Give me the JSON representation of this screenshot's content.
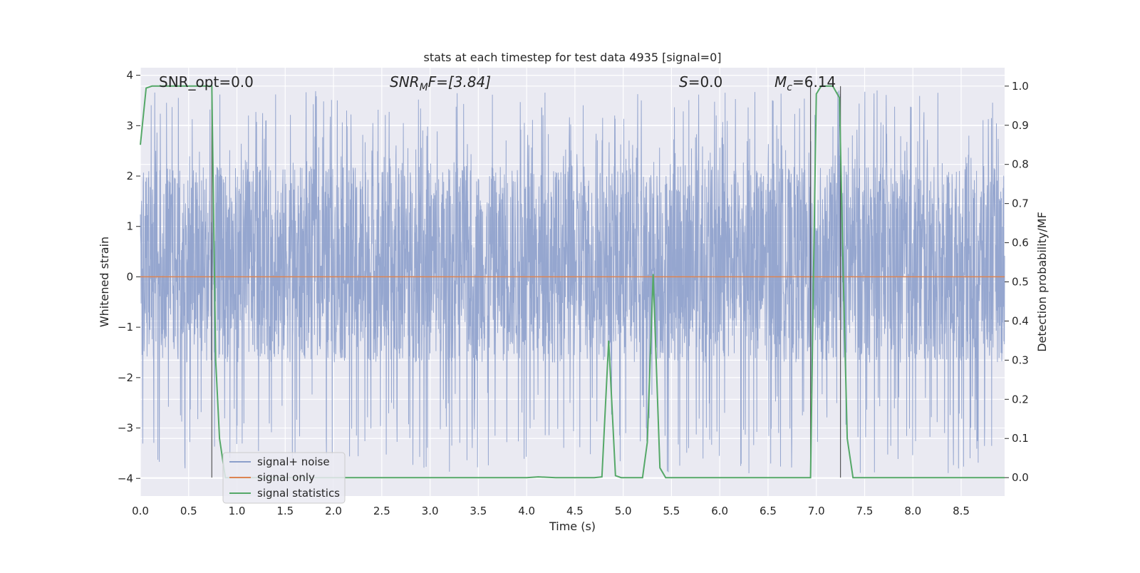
{
  "chart_data": {
    "type": "line",
    "title": "stats at each timestep for test data 4935 [signal=0]",
    "xlabel": "Time (s)",
    "ylabel": "Whitened strain",
    "ylabel_right": "Detection probability/MF",
    "xlim": [
      0.0,
      8.95
    ],
    "ylim": [
      -4.35,
      4.15
    ],
    "ylim_right": [
      -0.047,
      1.047
    ],
    "x_ticks": [
      "0.0",
      "0.5",
      "1.0",
      "1.5",
      "2.0",
      "2.5",
      "3.0",
      "3.5",
      "4.0",
      "4.5",
      "5.0",
      "5.5",
      "6.0",
      "6.5",
      "7.0",
      "7.5",
      "8.0",
      "8.5"
    ],
    "y_ticks": [
      "4",
      "3",
      "2",
      "1",
      "0",
      "−1",
      "−2",
      "−3",
      "−4"
    ],
    "y_right_ticks": [
      "1.0",
      "0.9",
      "0.8",
      "0.7",
      "0.6",
      "0.5",
      "0.4",
      "0.3",
      "0.2",
      "0.1",
      "0.0"
    ],
    "grid": true,
    "legend_position": "lower-left",
    "annotations": {
      "snr_opt": "SNR_opt=0.0",
      "snr_mf_base": "SNR",
      "snr_mf_sub": "M",
      "snr_mf_rest": "F=[3.84]",
      "s_label": "S",
      "s_rest": "=0.0",
      "mc_base": "M",
      "mc_sub": "c",
      "mc_rest": "=6.14"
    },
    "series": [
      {
        "name": "signal+ noise",
        "color": "#8c9fcb",
        "summary": {
          "envelope_low": -3.9,
          "envelope_high": 3.7,
          "dense_band": [
            -1.7,
            2.2
          ]
        }
      },
      {
        "name": "signal only",
        "color": "#dd8452",
        "x": [
          0.0,
          8.95
        ],
        "y": [
          0.0,
          0.0
        ]
      },
      {
        "name": "signal statistics",
        "color": "#55a868",
        "axis": "right",
        "x": [
          0.0,
          0.06,
          0.12,
          0.3,
          0.5,
          0.7,
          0.74,
          0.78,
          0.82,
          0.88,
          1.0,
          2.0,
          3.0,
          4.0,
          4.12,
          4.3,
          4.7,
          4.78,
          4.85,
          4.92,
          4.98,
          5.05,
          5.2,
          5.25,
          5.31,
          5.38,
          5.44,
          5.6,
          6.0,
          6.5,
          6.94,
          6.97,
          7.0,
          7.05,
          7.1,
          7.17,
          7.24,
          7.28,
          7.32,
          7.38,
          7.5,
          8.0,
          8.95
        ],
        "y": [
          0.85,
          0.995,
          1.0,
          1.0,
          1.0,
          1.0,
          1.0,
          0.3,
          0.1,
          0.0,
          0.0,
          0.0,
          0.0,
          0.0,
          0.002,
          0.0,
          0.0,
          0.002,
          0.35,
          0.005,
          0.0,
          0.0,
          0.0,
          0.09,
          0.52,
          0.025,
          0.0,
          0.0,
          0.0,
          0.0,
          0.0,
          0.5,
          0.98,
          1.0,
          1.0,
          1.0,
          0.97,
          0.5,
          0.1,
          0.0,
          0.0,
          0.0,
          0.0
        ]
      }
    ],
    "vertical_markers": [
      0.74,
      6.94,
      7.25
    ]
  }
}
